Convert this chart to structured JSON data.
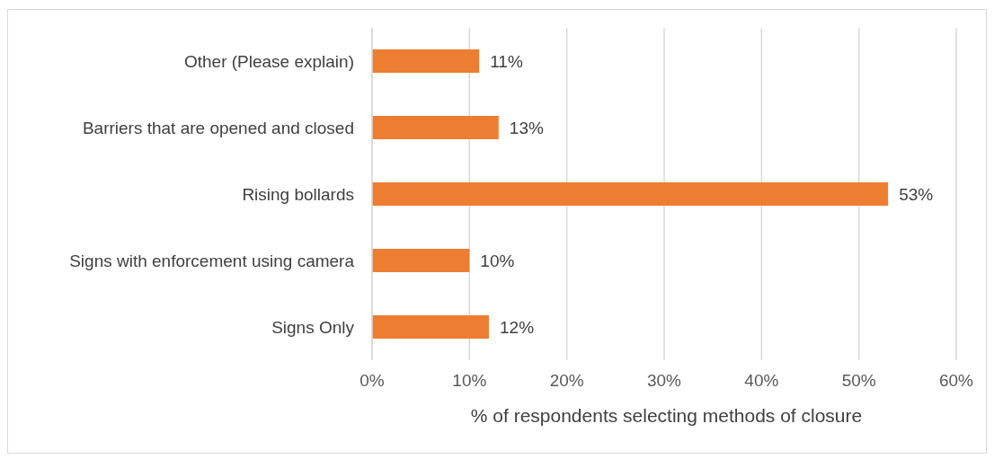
{
  "chart_data": {
    "type": "bar",
    "orientation": "horizontal",
    "xlabel": "% of respondents selecting methods of closure",
    "categories": [
      "Other (Please explain)",
      "Barriers that are opened and closed",
      "Rising bollards",
      "Signs with enforcement using camera",
      "Signs Only"
    ],
    "values": [
      11,
      13,
      53,
      10,
      12
    ],
    "value_labels": [
      "11%",
      "13%",
      "53%",
      "10%",
      "12%"
    ],
    "color": "#ed7d31",
    "xlim": [
      0,
      60
    ],
    "xticks": [
      {
        "value": 0,
        "label": "0%"
      },
      {
        "value": 10,
        "label": "10%"
      },
      {
        "value": 20,
        "label": "20%"
      },
      {
        "value": 30,
        "label": "30%"
      },
      {
        "value": 40,
        "label": "40%"
      },
      {
        "value": 50,
        "label": "50%"
      },
      {
        "value": 60,
        "label": "60%"
      }
    ],
    "grid": "x"
  }
}
